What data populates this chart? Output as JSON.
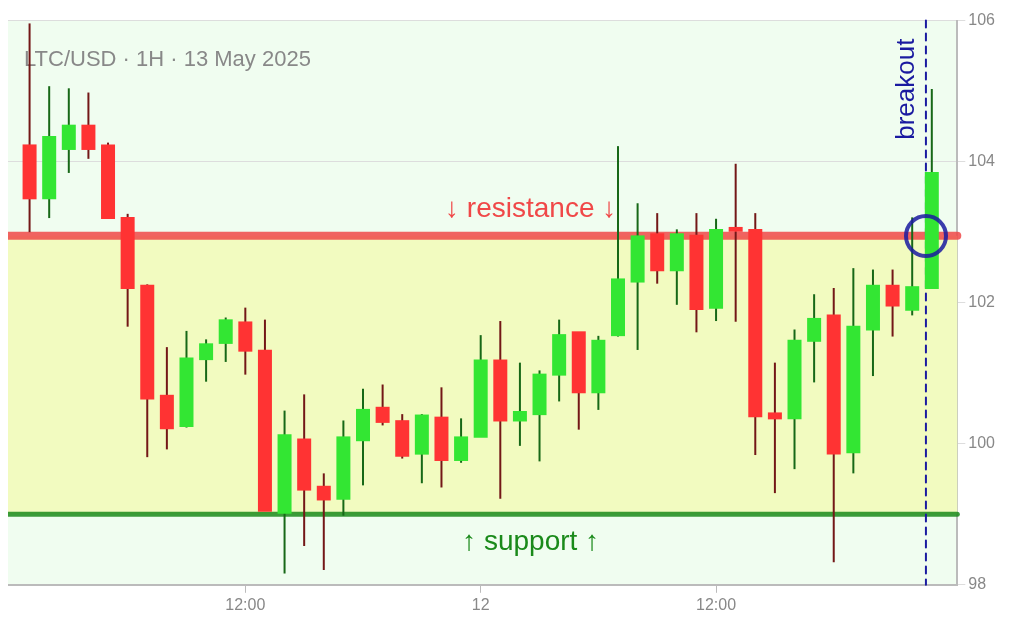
{
  "chart_data": {
    "type": "candlestick",
    "title": "LTC/USD · 1H · 13 May 2025",
    "x": [
      "2025-05-11T01:00",
      "2025-05-11T02:00",
      "2025-05-11T03:00",
      "2025-05-11T04:00",
      "2025-05-11T05:00",
      "2025-05-11T06:00",
      "2025-05-11T07:00",
      "2025-05-11T08:00",
      "2025-05-11T09:00",
      "2025-05-11T10:00",
      "2025-05-11T11:00",
      "2025-05-11T12:00",
      "2025-05-11T13:00",
      "2025-05-11T14:00",
      "2025-05-11T15:00",
      "2025-05-11T16:00",
      "2025-05-11T17:00",
      "2025-05-11T18:00",
      "2025-05-11T19:00",
      "2025-05-11T20:00",
      "2025-05-11T21:00",
      "2025-05-11T22:00",
      "2025-05-11T23:00",
      "2025-05-12T00:00",
      "2025-05-12T01:00",
      "2025-05-12T02:00",
      "2025-05-12T03:00",
      "2025-05-12T04:00",
      "2025-05-12T05:00",
      "2025-05-12T06:00",
      "2025-05-12T07:00",
      "2025-05-12T08:00",
      "2025-05-12T09:00",
      "2025-05-12T10:00",
      "2025-05-12T11:00",
      "2025-05-12T12:00",
      "2025-05-12T13:00",
      "2025-05-12T14:00",
      "2025-05-12T15:00",
      "2025-05-12T16:00",
      "2025-05-12T17:00",
      "2025-05-12T18:00",
      "2025-05-12T19:00",
      "2025-05-12T20:00",
      "2025-05-12T21:00",
      "2025-05-12T22:00",
      "2025-05-12T23:00"
    ],
    "ohlc": [
      [
        104.23,
        105.96,
        103.0,
        103.48
      ],
      [
        103.48,
        105.07,
        103.2,
        104.35
      ],
      [
        104.18,
        105.04,
        103.84,
        104.51
      ],
      [
        104.51,
        104.98,
        104.04,
        104.18
      ],
      [
        104.23,
        104.27,
        103.2,
        103.2
      ],
      [
        103.2,
        103.26,
        101.66,
        102.21
      ],
      [
        102.24,
        102.26,
        99.81,
        100.64
      ],
      [
        100.68,
        101.37,
        99.92,
        100.22
      ],
      [
        100.25,
        101.6,
        100.23,
        101.21
      ],
      [
        101.2,
        101.48,
        100.88,
        101.41
      ],
      [
        101.43,
        101.79,
        101.16,
        101.75
      ],
      [
        101.72,
        101.93,
        100.98,
        101.32
      ],
      [
        101.32,
        101.76,
        99.05,
        99.05
      ],
      [
        99.02,
        100.47,
        98.16,
        100.12
      ],
      [
        100.06,
        100.7,
        98.55,
        99.35
      ],
      [
        99.39,
        99.58,
        98.21,
        99.21
      ],
      [
        99.22,
        100.33,
        98.98,
        100.09
      ],
      [
        100.05,
        100.78,
        99.41,
        100.48
      ],
      [
        100.51,
        100.84,
        100.26,
        100.31
      ],
      [
        100.32,
        100.42,
        99.79,
        99.83
      ],
      [
        99.86,
        100.42,
        99.44,
        100.4
      ],
      [
        100.37,
        100.8,
        99.38,
        99.77
      ],
      [
        99.77,
        100.36,
        99.73,
        100.09
      ],
      [
        100.1,
        101.54,
        100.1,
        101.18
      ],
      [
        101.18,
        101.74,
        99.22,
        100.33
      ],
      [
        100.33,
        101.15,
        99.97,
        100.45
      ],
      [
        100.42,
        101.04,
        99.75,
        100.98
      ],
      [
        100.98,
        101.76,
        100.6,
        101.54
      ],
      [
        101.58,
        101.58,
        100.2,
        100.73
      ],
      [
        100.73,
        101.53,
        100.48,
        101.46
      ],
      [
        101.54,
        104.22,
        101.52,
        102.33
      ],
      [
        102.3,
        103.41,
        101.33,
        102.94
      ],
      [
        102.97,
        103.27,
        102.27,
        102.46
      ],
      [
        102.46,
        103.04,
        101.97,
        102.97
      ],
      [
        102.95,
        103.27,
        101.58,
        101.91
      ],
      [
        101.93,
        103.19,
        101.74,
        103.03
      ],
      [
        103.06,
        103.97,
        101.73,
        103.02
      ],
      [
        103.03,
        103.27,
        99.84,
        100.39
      ],
      [
        100.43,
        101.15,
        99.3,
        100.36
      ],
      [
        100.36,
        101.62,
        99.64,
        101.46
      ],
      [
        101.46,
        102.12,
        100.87,
        101.77
      ],
      [
        101.82,
        102.21,
        98.32,
        99.86
      ],
      [
        99.88,
        102.49,
        99.58,
        101.66
      ],
      [
        101.62,
        102.47,
        100.96,
        102.24
      ],
      [
        102.24,
        102.47,
        101.52,
        101.96
      ],
      [
        101.9,
        103.21,
        101.82,
        102.22
      ],
      [
        102.21,
        105.03,
        102.21,
        103.84
      ]
    ],
    "colors": [
      "#ff3333",
      "#33e633",
      "#33e633",
      "#ff3333",
      "#ff3333",
      "#ff3333",
      "#ff3333",
      "#ff3333",
      "#33e633",
      "#33e633",
      "#33e633",
      "#ff3333",
      "#ff3333",
      "#33e633",
      "#ff3333",
      "#ff3333",
      "#33e633",
      "#33e633",
      "#ff3333",
      "#ff3333",
      "#33e633",
      "#ff3333",
      "#33e633",
      "#33e633",
      "#ff3333",
      "#33e633",
      "#33e633",
      "#33e633",
      "#ff3333",
      "#33e633",
      "#33e633",
      "#33e633",
      "#ff3333",
      "#33e633",
      "#ff3333",
      "#33e633",
      "#ff3333",
      "#ff3333",
      "#ff3333",
      "#33e633",
      "#33e633",
      "#ff3333",
      "#33e633",
      "#33e633",
      "#ff3333",
      "#33e633",
      "#33e633"
    ],
    "xlim": [
      "2025-05-10T23:54",
      "2025-05-13T00:18"
    ],
    "xticks": [
      {
        "value": "2025-05-11T12:00",
        "label": "12:00"
      },
      {
        "value": "2025-05-12T00:00",
        "label": "12"
      },
      {
        "value": "2025-05-12T12:00",
        "label": "12:00"
      }
    ],
    "ylim": [
      98,
      106
    ],
    "yticks": [
      98,
      100,
      102,
      104,
      106
    ],
    "grid": "y",
    "ref_lines": [
      {
        "axis": "y",
        "value": 102.95,
        "label": "↓ resistance ↓",
        "color": "#f04848",
        "line_style": "solid"
      },
      {
        "axis": "y",
        "value": 99.0,
        "label": "↑ support ↑",
        "color": "#1a8a1a",
        "line_style": "solid"
      },
      {
        "axis": "x",
        "value": "2025-05-12T22:42",
        "label": "breakout",
        "color": "#1a1aa0",
        "line_style": "dashed"
      }
    ],
    "bands": [
      {
        "axis": "y",
        "from": 99.0,
        "to": 102.95,
        "color": "#f2fbc0"
      }
    ]
  }
}
